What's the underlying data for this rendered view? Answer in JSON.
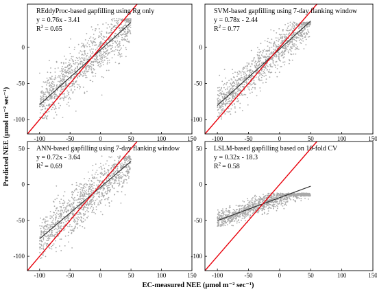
{
  "figure": {
    "xlabel": "EC-measured NEE (μmol m⁻² sec⁻¹)",
    "ylabel": "Predicted NEE (μmol m⁻² sec⁻¹)"
  },
  "chart_data": [
    {
      "type": "scatter",
      "title": "REddyProc-based gapfilling using Rg only",
      "equation": "y = 0.76x - 3.41",
      "r2_label": "R",
      "r2_value": "= 0.65",
      "xlim": [
        -120,
        150
      ],
      "ylim": [
        -120,
        60
      ],
      "x_ticks": [
        -100,
        -50,
        0,
        50,
        100,
        150
      ],
      "y_ticks": [
        -100,
        -50,
        0
      ],
      "regression": {
        "slope": 0.76,
        "intercept": -3.41,
        "x_range": [
          -100,
          50
        ]
      },
      "one_to_one_line": true,
      "scatter_cloud": {
        "x_range": [
          -100,
          50
        ],
        "slope": 0.76,
        "intercept": -3.41,
        "spread": 16,
        "y_min": -100,
        "y_max": 40
      },
      "series_colors": {
        "points": "#a9a9a9",
        "regression": "#333333",
        "one_to_one": "#e8000b"
      }
    },
    {
      "type": "scatter",
      "title": "SVM-based gapfilling using 7-day flanking window",
      "equation": "y = 0.78x - 2.44",
      "r2_label": "R",
      "r2_value": "= 0.77",
      "xlim": [
        -120,
        150
      ],
      "ylim": [
        -120,
        60
      ],
      "x_ticks": [
        -100,
        -50,
        0,
        50,
        100,
        150
      ],
      "y_ticks": [
        -100,
        -50,
        0
      ],
      "regression": {
        "slope": 0.78,
        "intercept": -2.44,
        "x_range": [
          -100,
          50
        ]
      },
      "one_to_one_line": true,
      "scatter_cloud": {
        "x_range": [
          -100,
          50
        ],
        "slope": 0.78,
        "intercept": -2.44,
        "spread": 12,
        "y_min": -100,
        "y_max": 35
      },
      "series_colors": {
        "points": "#a9a9a9",
        "regression": "#333333",
        "one_to_one": "#e8000b"
      }
    },
    {
      "type": "scatter",
      "title": "ANN-based gapfilling using 7-day flanking window",
      "equation": "y = 0.72x - 3.64",
      "r2_label": "R",
      "r2_value": "= 0.69",
      "xlim": [
        -120,
        150
      ],
      "ylim": [
        -120,
        60
      ],
      "x_ticks": [
        -100,
        -50,
        0,
        50,
        100,
        150
      ],
      "y_ticks": [
        -100,
        -50,
        0,
        50
      ],
      "regression": {
        "slope": 0.72,
        "intercept": -3.64,
        "x_range": [
          -100,
          50
        ]
      },
      "one_to_one_line": true,
      "scatter_cloud": {
        "x_range": [
          -100,
          50
        ],
        "slope": 0.72,
        "intercept": -3.64,
        "spread": 15,
        "y_min": -105,
        "y_max": 40
      },
      "series_colors": {
        "points": "#a9a9a9",
        "regression": "#333333",
        "one_to_one": "#e8000b"
      }
    },
    {
      "type": "scatter",
      "title": "LSLM-based gapfilling based on 10-fold CV",
      "equation": "y = 0.32x - 18.3",
      "r2_label": "R",
      "r2_value": "= 0.58",
      "xlim": [
        -120,
        150
      ],
      "ylim": [
        -120,
        60
      ],
      "x_ticks": [
        -100,
        -50,
        0,
        50,
        100,
        150
      ],
      "y_ticks": [
        -100,
        -50,
        0,
        50
      ],
      "regression": {
        "slope": 0.32,
        "intercept": -18.3,
        "x_range": [
          -100,
          50
        ]
      },
      "one_to_one_line": true,
      "scatter_cloud": {
        "x_range": [
          -100,
          50
        ],
        "slope": 0.32,
        "intercept": -18.3,
        "spread": 6,
        "y_min": -58,
        "y_max": -12
      },
      "series_colors": {
        "points": "#a9a9a9",
        "regression": "#333333",
        "one_to_one": "#e8000b"
      }
    }
  ]
}
